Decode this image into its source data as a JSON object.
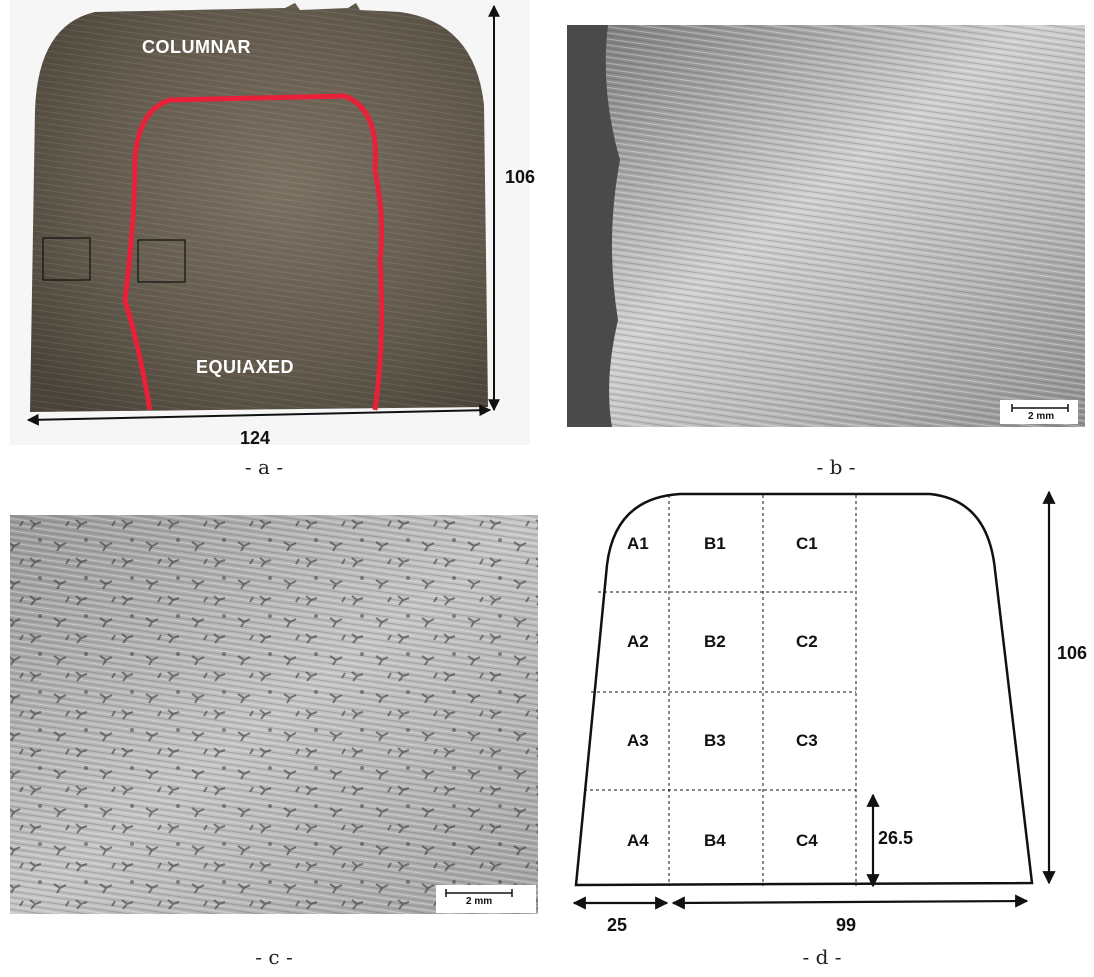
{
  "panel_a": {
    "label_top": "COLUMNAR",
    "label_bottom": "EQUIAXED",
    "height_dim": "106",
    "width_dim": "124",
    "caption": "- a -"
  },
  "panel_b": {
    "scale": "2 mm",
    "caption": "- b -"
  },
  "panel_c": {
    "scale": "2 mm",
    "caption": "- c -"
  },
  "panel_d": {
    "cells": {
      "A1": "A1",
      "B1": "B1",
      "C1": "C1",
      "A2": "A2",
      "B2": "B2",
      "C2": "C2",
      "A3": "A3",
      "B3": "B3",
      "C3": "C3",
      "A4": "A4",
      "B4": "B4",
      "C4": "C4"
    },
    "height_dim": "106",
    "cell_height_dim": "26.5",
    "left_dim": "25",
    "right_dim": "99",
    "caption": "- d -"
  },
  "colors": {
    "ingot": "#5e5547",
    "boundary": "#e8203a",
    "micro_dark": "#6a6a6a",
    "micro_light": "#d8d8d8"
  }
}
